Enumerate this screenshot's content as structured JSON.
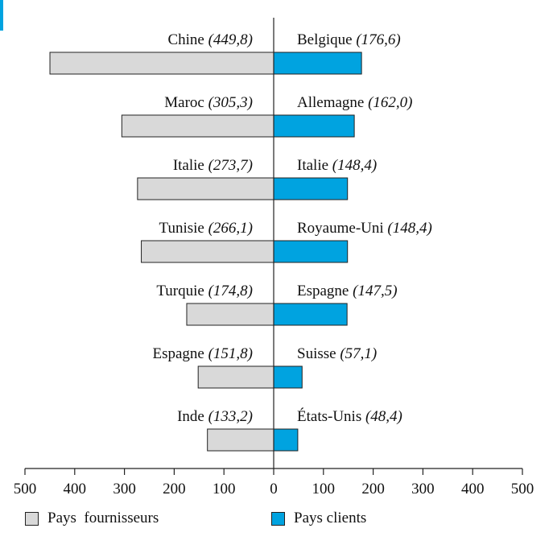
{
  "chart_data": {
    "type": "bar",
    "orientation": "horizontal-diverging",
    "xlim": [
      -500,
      500
    ],
    "x_ticks": [
      "500",
      "400",
      "300",
      "200",
      "100",
      "0",
      "100",
      "200",
      "300",
      "400",
      "500"
    ],
    "grid": false,
    "legend_position": "bottom",
    "series": [
      {
        "name": "Pays fournisseurs",
        "side": "left",
        "color": "#d9d9d9",
        "categories": [
          "Chine",
          "Maroc",
          "Italie",
          "Tunisie",
          "Turquie",
          "Espagne",
          "Inde"
        ],
        "value_labels": [
          "(449,8)",
          "(305,3)",
          "(273,7)",
          "(266,1)",
          "(174,8)",
          "(151,8)",
          "(133,2)"
        ],
        "values": [
          449.8,
          305.3,
          273.7,
          266.1,
          174.8,
          151.8,
          133.2
        ]
      },
      {
        "name": "Pays clients",
        "side": "right",
        "color": "#00a3e0",
        "categories": [
          "Belgique",
          "Allemagne",
          "Italie",
          "Royaume-Uni",
          "Espagne",
          "Suisse",
          "États-Unis"
        ],
        "value_labels": [
          "(176,6)",
          "(162,0)",
          "(148,4)",
          "(148,4)",
          "(147,5)",
          "(57,1)",
          "(48,4)"
        ],
        "values": [
          176.6,
          162.0,
          148.4,
          148.4,
          147.5,
          57.1,
          48.4
        ]
      }
    ]
  },
  "legend": {
    "left_label": "Pays  fournisseurs",
    "right_label": "Pays clients"
  }
}
